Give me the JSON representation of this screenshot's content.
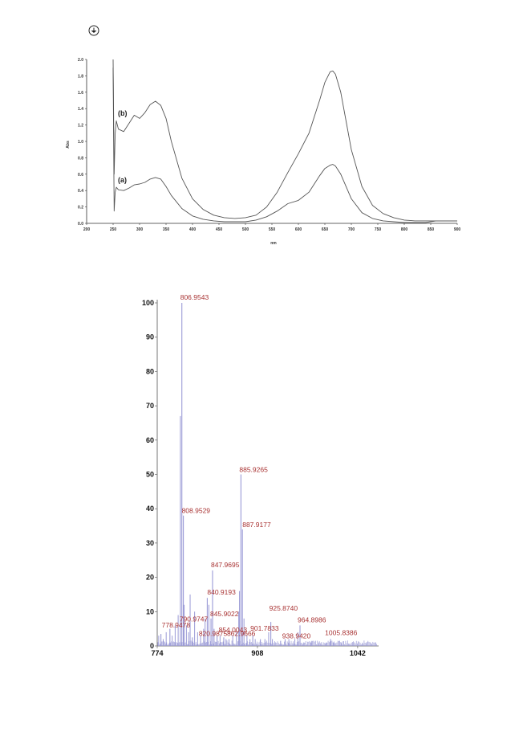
{
  "chart_data": [
    {
      "type": "line",
      "xlabel": "nm",
      "ylabel": "Abs",
      "xlim": [
        200,
        900
      ],
      "ylim": [
        0,
        2.0
      ],
      "x_ticks": [
        "200",
        "250",
        "300",
        "350",
        "400",
        "450",
        "500",
        "550",
        "600",
        "650",
        "700",
        "750",
        "800",
        "850",
        "900"
      ],
      "y_ticks": [
        "0.0",
        "0.2",
        "0.4",
        "0.6",
        "0.8",
        "1.0",
        "1.2",
        "1.4",
        "1.6",
        "1.8",
        "2.0"
      ],
      "series": [
        {
          "name": "(b)",
          "x": [
            250,
            252,
            254,
            256,
            260,
            270,
            280,
            290,
            300,
            310,
            320,
            330,
            340,
            350,
            360,
            380,
            400,
            420,
            440,
            460,
            480,
            500,
            520,
            540,
            560,
            580,
            600,
            620,
            640,
            650,
            660,
            665,
            670,
            680,
            690,
            700,
            720,
            740,
            760,
            780,
            800,
            820,
            840,
            860,
            880,
            900
          ],
          "y": [
            2.0,
            0.6,
            1.1,
            1.25,
            1.15,
            1.12,
            1.22,
            1.32,
            1.28,
            1.35,
            1.45,
            1.49,
            1.44,
            1.28,
            1.0,
            0.55,
            0.3,
            0.17,
            0.1,
            0.07,
            0.06,
            0.07,
            0.1,
            0.2,
            0.38,
            0.62,
            0.85,
            1.1,
            1.5,
            1.72,
            1.85,
            1.86,
            1.82,
            1.6,
            1.25,
            0.9,
            0.45,
            0.22,
            0.12,
            0.07,
            0.04,
            0.03,
            0.03,
            0.03,
            0.03,
            0.03
          ]
        },
        {
          "name": "(a)",
          "x": [
            250,
            252,
            254,
            256,
            260,
            270,
            280,
            290,
            300,
            310,
            320,
            330,
            340,
            350,
            360,
            380,
            400,
            420,
            440,
            460,
            480,
            500,
            520,
            540,
            560,
            580,
            600,
            620,
            640,
            650,
            660,
            665,
            670,
            680,
            690,
            700,
            720,
            740,
            760,
            780,
            800,
            820,
            840,
            860,
            880,
            900
          ],
          "y": [
            1.9,
            0.15,
            0.38,
            0.44,
            0.41,
            0.4,
            0.43,
            0.47,
            0.48,
            0.5,
            0.54,
            0.56,
            0.54,
            0.45,
            0.34,
            0.18,
            0.09,
            0.05,
            0.03,
            0.02,
            0.02,
            0.02,
            0.04,
            0.08,
            0.15,
            0.24,
            0.28,
            0.38,
            0.58,
            0.67,
            0.71,
            0.72,
            0.7,
            0.6,
            0.45,
            0.3,
            0.13,
            0.06,
            0.03,
            0.02,
            0.01,
            0.01,
            0.01,
            0.03,
            0.03,
            0.03
          ]
        }
      ]
    },
    {
      "type": "bar",
      "xlim": [
        774,
        1070
      ],
      "ylim": [
        0,
        100
      ],
      "x_ticks": [
        "774",
        "908",
        "1042"
      ],
      "y_ticks": [
        "0",
        "10",
        "20",
        "30",
        "40",
        "50",
        "60",
        "70",
        "80",
        "90",
        "100"
      ],
      "peaks": [
        {
          "x": 778.9478,
          "y": 3.5,
          "label": "778.9478"
        },
        {
          "x": 790.9747,
          "y": 5,
          "label": "790.9747"
        },
        {
          "x": 806.9543,
          "y": 100,
          "label": "806.9543"
        },
        {
          "x": 808.9529,
          "y": 38,
          "label": "808.9529"
        },
        {
          "x": 820.9875,
          "y": 2.5,
          "label": "820.9875"
        },
        {
          "x": 840.9193,
          "y": 14,
          "label": "840.9193"
        },
        {
          "x": 845.9022,
          "y": 8,
          "label": "845.9022"
        },
        {
          "x": 847.9695,
          "y": 22,
          "label": "847.9695"
        },
        {
          "x": 854.0043,
          "y": 3,
          "label": "854.0043"
        },
        {
          "x": 862.9666,
          "y": 2.5,
          "label": "862.9666"
        },
        {
          "x": 885.9265,
          "y": 50,
          "label": "885.9265"
        },
        {
          "x": 887.9177,
          "y": 34,
          "label": "887.9177"
        },
        {
          "x": 901.7833,
          "y": 3,
          "label": "901.7833"
        },
        {
          "x": 925.874,
          "y": 7,
          "label": "925.8740"
        },
        {
          "x": 938.942,
          "y": 1.5,
          "label": "938.9420"
        },
        {
          "x": 964.8986,
          "y": 6,
          "label": "964.8986"
        },
        {
          "x": 1005.8386,
          "y": 2,
          "label": "1005.8386"
        }
      ],
      "minor_peaks": [
        {
          "x": 776,
          "y": 3
        },
        {
          "x": 782,
          "y": 2
        },
        {
          "x": 786,
          "y": 4
        },
        {
          "x": 794,
          "y": 3
        },
        {
          "x": 798,
          "y": 6
        },
        {
          "x": 802,
          "y": 9
        },
        {
          "x": 805,
          "y": 67
        },
        {
          "x": 810,
          "y": 12
        },
        {
          "x": 813,
          "y": 6
        },
        {
          "x": 816,
          "y": 4
        },
        {
          "x": 818,
          "y": 15
        },
        {
          "x": 824,
          "y": 10
        },
        {
          "x": 828,
          "y": 4
        },
        {
          "x": 832,
          "y": 3
        },
        {
          "x": 836,
          "y": 5
        },
        {
          "x": 838,
          "y": 8
        },
        {
          "x": 843,
          "y": 12
        },
        {
          "x": 850,
          "y": 5
        },
        {
          "x": 858,
          "y": 3
        },
        {
          "x": 866,
          "y": 2
        },
        {
          "x": 870,
          "y": 2
        },
        {
          "x": 875,
          "y": 3
        },
        {
          "x": 880,
          "y": 4
        },
        {
          "x": 883,
          "y": 10
        },
        {
          "x": 884,
          "y": 16
        },
        {
          "x": 890,
          "y": 8
        },
        {
          "x": 894,
          "y": 3
        },
        {
          "x": 898,
          "y": 2
        },
        {
          "x": 905,
          "y": 2
        },
        {
          "x": 912,
          "y": 2
        },
        {
          "x": 918,
          "y": 2
        },
        {
          "x": 923,
          "y": 4
        },
        {
          "x": 928,
          "y": 2
        },
        {
          "x": 945,
          "y": 2
        },
        {
          "x": 950,
          "y": 2
        },
        {
          "x": 958,
          "y": 2
        },
        {
          "x": 962,
          "y": 4
        },
        {
          "x": 970,
          "y": 1
        },
        {
          "x": 980,
          "y": 1
        },
        {
          "x": 990,
          "y": 1
        },
        {
          "x": 1000,
          "y": 1
        },
        {
          "x": 1010,
          "y": 1
        },
        {
          "x": 1020,
          "y": 1
        }
      ]
    }
  ],
  "colors": {
    "uv_curve": "#555555",
    "ms_bar": "#9a9ad6",
    "ms_label": "#a83232",
    "axis": "#333333"
  },
  "icons": {
    "header": "circle-logo-icon"
  }
}
